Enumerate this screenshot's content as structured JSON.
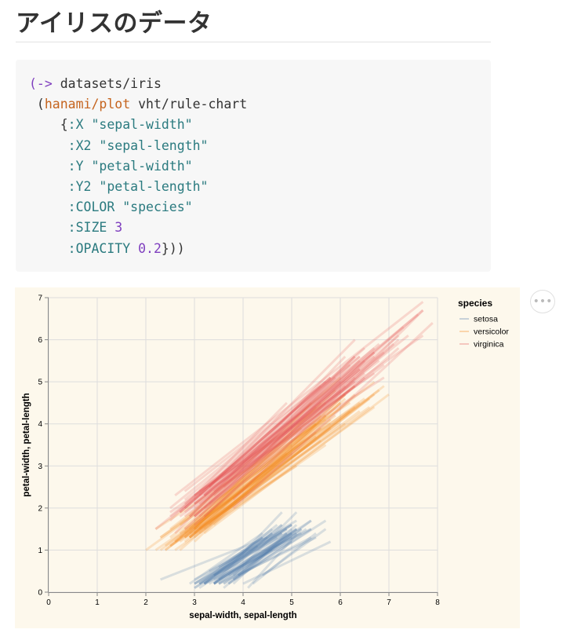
{
  "page": {
    "title": "アイリスのデータ"
  },
  "code": {
    "lines": [
      [
        [
          "kw",
          "(->"
        ],
        [
          "txt",
          " datasets/iris"
        ]
      ],
      [
        [
          "txt",
          " ("
        ],
        [
          "fn",
          "hanami/plot"
        ],
        [
          "txt",
          " vht/rule-chart"
        ]
      ],
      [
        [
          "txt",
          "    {"
        ],
        [
          "str",
          ":X \"sepal-width\""
        ]
      ],
      [
        [
          "txt",
          "     "
        ],
        [
          "str",
          ":X2 \"sepal-length\""
        ]
      ],
      [
        [
          "txt",
          "     "
        ],
        [
          "str",
          ":Y \"petal-width\""
        ]
      ],
      [
        [
          "txt",
          "     "
        ],
        [
          "str",
          ":Y2 \"petal-length\""
        ]
      ],
      [
        [
          "txt",
          "     "
        ],
        [
          "str",
          ":COLOR \"species\""
        ]
      ],
      [
        [
          "txt",
          "     "
        ],
        [
          "str",
          ":SIZE "
        ],
        [
          "num",
          "3"
        ]
      ],
      [
        [
          "txt",
          "     "
        ],
        [
          "str",
          ":OPACITY "
        ],
        [
          "num",
          "0.2"
        ],
        [
          "txt",
          "}))"
        ]
      ]
    ]
  },
  "actions": {
    "menu_label": "•••"
  },
  "chart_data": {
    "type": "rule",
    "title": "",
    "xlabel": "sepal-width, sepal-length",
    "ylabel": "petal-width, petal-length",
    "xlim": [
      0,
      8
    ],
    "ylim": [
      0,
      7
    ],
    "x_ticks": [
      0,
      1,
      2,
      3,
      4,
      5,
      6,
      7,
      8
    ],
    "y_ticks": [
      0,
      1,
      2,
      3,
      4,
      5,
      6,
      7
    ],
    "grid": true,
    "legend": {
      "title": "species",
      "position": "top-right"
    },
    "stroke_width": 3,
    "opacity": 0.2,
    "columns": [
      "sepal-length",
      "sepal-width",
      "petal-length",
      "petal-width"
    ],
    "series": [
      {
        "name": "setosa",
        "color": "#4c78a8",
        "rows": [
          [
            5.1,
            3.5,
            1.4,
            0.2
          ],
          [
            4.9,
            3.0,
            1.4,
            0.2
          ],
          [
            4.7,
            3.2,
            1.3,
            0.2
          ],
          [
            4.6,
            3.1,
            1.5,
            0.2
          ],
          [
            5.0,
            3.6,
            1.4,
            0.2
          ],
          [
            5.4,
            3.9,
            1.7,
            0.4
          ],
          [
            4.6,
            3.4,
            1.4,
            0.3
          ],
          [
            5.0,
            3.4,
            1.5,
            0.2
          ],
          [
            4.4,
            2.9,
            1.4,
            0.2
          ],
          [
            4.9,
            3.1,
            1.5,
            0.1
          ],
          [
            5.4,
            3.7,
            1.5,
            0.2
          ],
          [
            4.8,
            3.4,
            1.6,
            0.2
          ],
          [
            4.8,
            3.0,
            1.4,
            0.1
          ],
          [
            4.3,
            3.0,
            1.1,
            0.1
          ],
          [
            5.8,
            4.0,
            1.2,
            0.2
          ],
          [
            5.7,
            4.4,
            1.5,
            0.4
          ],
          [
            5.4,
            3.9,
            1.3,
            0.4
          ],
          [
            5.1,
            3.5,
            1.4,
            0.3
          ],
          [
            5.7,
            3.8,
            1.7,
            0.3
          ],
          [
            5.1,
            3.8,
            1.5,
            0.3
          ],
          [
            5.4,
            3.4,
            1.7,
            0.2
          ],
          [
            5.1,
            3.7,
            1.5,
            0.4
          ],
          [
            4.6,
            3.6,
            1.0,
            0.2
          ],
          [
            5.1,
            3.3,
            1.7,
            0.5
          ],
          [
            4.8,
            3.4,
            1.9,
            0.2
          ],
          [
            5.0,
            3.0,
            1.6,
            0.2
          ],
          [
            5.0,
            3.4,
            1.6,
            0.4
          ],
          [
            5.2,
            3.5,
            1.5,
            0.2
          ],
          [
            5.2,
            3.4,
            1.4,
            0.2
          ],
          [
            4.7,
            3.2,
            1.6,
            0.2
          ],
          [
            4.8,
            3.1,
            1.6,
            0.2
          ],
          [
            5.4,
            3.4,
            1.5,
            0.4
          ],
          [
            5.2,
            4.1,
            1.5,
            0.1
          ],
          [
            5.5,
            4.2,
            1.4,
            0.2
          ],
          [
            4.9,
            3.1,
            1.5,
            0.2
          ],
          [
            5.0,
            3.2,
            1.2,
            0.2
          ],
          [
            5.5,
            3.5,
            1.3,
            0.2
          ],
          [
            4.9,
            3.6,
            1.4,
            0.1
          ],
          [
            4.4,
            3.0,
            1.3,
            0.2
          ],
          [
            5.1,
            3.4,
            1.5,
            0.2
          ],
          [
            5.0,
            3.5,
            1.3,
            0.3
          ],
          [
            4.5,
            2.3,
            1.3,
            0.3
          ],
          [
            4.4,
            3.2,
            1.3,
            0.2
          ],
          [
            5.0,
            3.5,
            1.6,
            0.6
          ],
          [
            5.1,
            3.8,
            1.9,
            0.4
          ],
          [
            4.8,
            3.0,
            1.4,
            0.3
          ],
          [
            5.1,
            3.8,
            1.6,
            0.2
          ],
          [
            4.6,
            3.2,
            1.4,
            0.2
          ],
          [
            5.3,
            3.7,
            1.5,
            0.2
          ],
          [
            5.0,
            3.3,
            1.4,
            0.2
          ]
        ]
      },
      {
        "name": "versicolor",
        "color": "#f58518",
        "rows": [
          [
            7.0,
            3.2,
            4.7,
            1.4
          ],
          [
            6.4,
            3.2,
            4.5,
            1.5
          ],
          [
            6.9,
            3.1,
            4.9,
            1.5
          ],
          [
            5.5,
            2.3,
            4.0,
            1.3
          ],
          [
            6.5,
            2.8,
            4.6,
            1.5
          ],
          [
            5.7,
            2.8,
            4.5,
            1.3
          ],
          [
            6.3,
            3.3,
            4.7,
            1.6
          ],
          [
            4.9,
            2.4,
            3.3,
            1.0
          ],
          [
            6.6,
            2.9,
            4.6,
            1.3
          ],
          [
            5.2,
            2.7,
            3.9,
            1.4
          ],
          [
            5.0,
            2.0,
            3.5,
            1.0
          ],
          [
            5.9,
            3.0,
            4.2,
            1.5
          ],
          [
            6.0,
            2.2,
            4.0,
            1.0
          ],
          [
            6.1,
            2.9,
            4.7,
            1.4
          ],
          [
            5.6,
            2.9,
            3.6,
            1.3
          ],
          [
            6.7,
            3.1,
            4.4,
            1.4
          ],
          [
            5.6,
            3.0,
            4.5,
            1.5
          ],
          [
            5.8,
            2.7,
            4.1,
            1.0
          ],
          [
            6.2,
            2.2,
            4.5,
            1.5
          ],
          [
            5.6,
            2.5,
            3.9,
            1.1
          ],
          [
            5.9,
            3.2,
            4.8,
            1.8
          ],
          [
            6.1,
            2.8,
            4.0,
            1.3
          ],
          [
            6.3,
            2.5,
            4.9,
            1.5
          ],
          [
            6.1,
            2.8,
            4.7,
            1.2
          ],
          [
            6.4,
            2.9,
            4.3,
            1.3
          ],
          [
            6.6,
            3.0,
            4.4,
            1.4
          ],
          [
            6.8,
            2.8,
            4.8,
            1.4
          ],
          [
            6.7,
            3.0,
            5.0,
            1.7
          ],
          [
            6.0,
            2.9,
            4.5,
            1.5
          ],
          [
            5.7,
            2.6,
            3.5,
            1.0
          ],
          [
            5.5,
            2.4,
            3.8,
            1.1
          ],
          [
            5.5,
            2.4,
            3.7,
            1.0
          ],
          [
            5.8,
            2.7,
            3.9,
            1.2
          ],
          [
            6.0,
            2.7,
            5.1,
            1.6
          ],
          [
            5.4,
            3.0,
            4.5,
            1.5
          ],
          [
            6.0,
            3.4,
            4.5,
            1.6
          ],
          [
            6.7,
            3.1,
            4.7,
            1.5
          ],
          [
            6.3,
            2.3,
            4.4,
            1.3
          ],
          [
            5.6,
            3.0,
            4.1,
            1.3
          ],
          [
            5.5,
            2.5,
            4.0,
            1.3
          ],
          [
            5.5,
            2.6,
            4.4,
            1.2
          ],
          [
            6.1,
            3.0,
            4.6,
            1.4
          ],
          [
            5.8,
            2.6,
            4.0,
            1.2
          ],
          [
            5.0,
            2.3,
            3.3,
            1.0
          ],
          [
            5.6,
            2.7,
            4.2,
            1.3
          ],
          [
            5.7,
            3.0,
            4.2,
            1.2
          ],
          [
            5.7,
            2.9,
            4.2,
            1.3
          ],
          [
            6.2,
            2.9,
            4.3,
            1.3
          ],
          [
            5.1,
            2.5,
            3.0,
            1.1
          ],
          [
            5.7,
            2.8,
            4.1,
            1.3
          ]
        ]
      },
      {
        "name": "virginica",
        "color": "#e45756",
        "rows": [
          [
            6.3,
            3.3,
            6.0,
            2.5
          ],
          [
            5.8,
            2.7,
            5.1,
            1.9
          ],
          [
            7.1,
            3.0,
            5.9,
            2.1
          ],
          [
            6.3,
            2.9,
            5.6,
            1.8
          ],
          [
            6.5,
            3.0,
            5.8,
            2.2
          ],
          [
            7.6,
            3.0,
            6.6,
            2.1
          ],
          [
            4.9,
            2.5,
            4.5,
            1.7
          ],
          [
            7.3,
            2.9,
            6.3,
            1.8
          ],
          [
            6.7,
            2.5,
            5.8,
            1.8
          ],
          [
            7.2,
            3.6,
            6.1,
            2.5
          ],
          [
            6.5,
            3.2,
            5.1,
            2.0
          ],
          [
            6.4,
            2.7,
            5.3,
            1.9
          ],
          [
            6.8,
            3.0,
            5.5,
            2.1
          ],
          [
            5.7,
            2.5,
            5.0,
            2.0
          ],
          [
            5.8,
            2.8,
            5.1,
            2.4
          ],
          [
            6.4,
            3.2,
            5.3,
            2.3
          ],
          [
            6.5,
            3.0,
            5.5,
            1.8
          ],
          [
            7.7,
            3.8,
            6.7,
            2.2
          ],
          [
            7.7,
            2.6,
            6.9,
            2.3
          ],
          [
            6.0,
            2.2,
            5.0,
            1.5
          ],
          [
            6.9,
            3.2,
            5.7,
            2.3
          ],
          [
            5.6,
            2.8,
            4.9,
            2.0
          ],
          [
            7.7,
            2.8,
            6.7,
            2.0
          ],
          [
            6.3,
            2.7,
            4.9,
            1.8
          ],
          [
            6.7,
            3.3,
            5.7,
            2.1
          ],
          [
            7.2,
            3.2,
            6.0,
            1.8
          ],
          [
            6.2,
            2.8,
            4.8,
            1.8
          ],
          [
            6.1,
            3.0,
            4.9,
            1.8
          ],
          [
            6.4,
            2.8,
            5.6,
            2.1
          ],
          [
            7.2,
            3.0,
            5.8,
            1.6
          ],
          [
            7.4,
            2.8,
            6.1,
            1.9
          ],
          [
            7.9,
            3.8,
            6.4,
            2.0
          ],
          [
            6.4,
            2.8,
            5.6,
            2.2
          ],
          [
            6.3,
            2.8,
            5.1,
            1.5
          ],
          [
            6.1,
            2.6,
            5.6,
            1.4
          ],
          [
            7.7,
            3.0,
            6.1,
            2.3
          ],
          [
            6.3,
            3.4,
            5.6,
            2.4
          ],
          [
            6.4,
            3.1,
            5.5,
            1.8
          ],
          [
            6.0,
            3.0,
            4.8,
            1.8
          ],
          [
            6.9,
            3.1,
            5.4,
            2.1
          ],
          [
            6.7,
            3.1,
            5.6,
            2.4
          ],
          [
            6.9,
            3.1,
            5.1,
            2.3
          ],
          [
            5.8,
            2.7,
            5.1,
            1.9
          ],
          [
            6.8,
            3.2,
            5.9,
            2.3
          ],
          [
            6.7,
            3.3,
            5.7,
            2.5
          ],
          [
            6.7,
            3.0,
            5.2,
            2.3
          ],
          [
            6.3,
            2.5,
            5.0,
            1.9
          ],
          [
            6.5,
            3.0,
            5.2,
            2.0
          ],
          [
            6.2,
            3.4,
            5.4,
            2.3
          ],
          [
            5.9,
            3.0,
            5.1,
            1.8
          ]
        ]
      }
    ]
  }
}
